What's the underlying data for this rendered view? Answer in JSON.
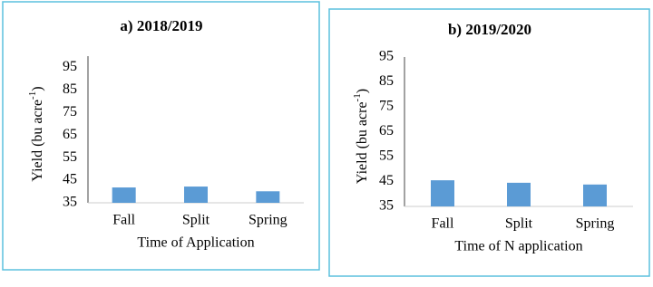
{
  "chart_data": [
    {
      "type": "bar",
      "title": "a) 2018/2019",
      "x_label": "Time of Application",
      "y_label": "Yield (bu acre",
      "y_label_sup": "-1",
      "y_label_end": ")",
      "categories": [
        "Fall",
        "Split",
        "Spring"
      ],
      "values": [
        41.8,
        42.2,
        40.1
      ],
      "color": "#5b9bd5",
      "ylim": [
        35,
        100
      ],
      "yticks": [
        35,
        45,
        55,
        65,
        75,
        85,
        95
      ],
      "grid": false
    },
    {
      "type": "bar",
      "title": "b) 2019/2020",
      "x_label": "Time of N application",
      "y_label": "Yield (bu acre",
      "y_label_sup": "-1",
      "y_label_end": ")",
      "categories": [
        "Fall",
        "Split",
        "Spring"
      ],
      "values": [
        45.5,
        44.5,
        43.8
      ],
      "color": "#5b9bd5",
      "ylim": [
        35,
        95
      ],
      "yticks": [
        35,
        45,
        55,
        65,
        75,
        85,
        95
      ],
      "grid": false
    }
  ]
}
